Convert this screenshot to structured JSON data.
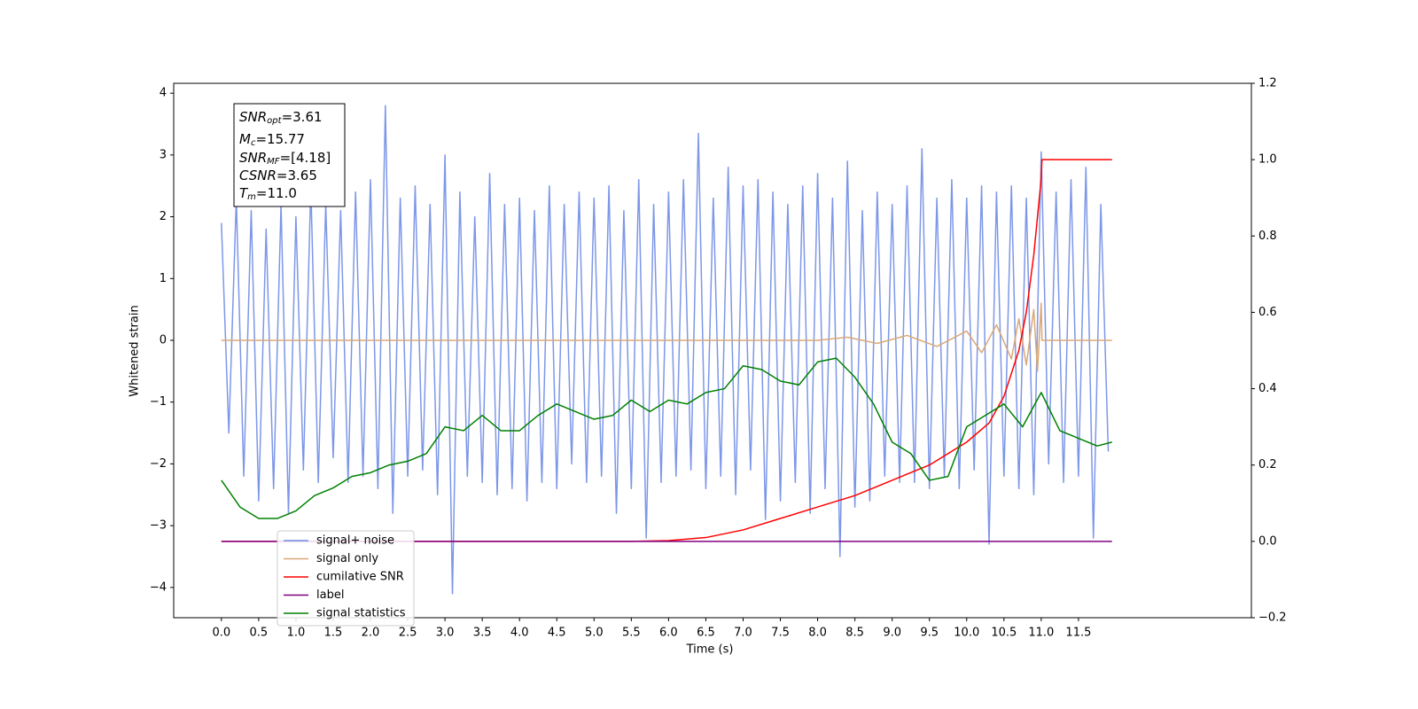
{
  "chart_data": {
    "type": "line",
    "xlabel": "Time (s)",
    "ylabel": "Whitened strain",
    "xlim": [
      -0.64,
      13.82
    ],
    "ylim": [
      -4.49,
      4.16
    ],
    "y2lim": [
      -0.2,
      1.2
    ],
    "xticks": [
      {
        "value": 0,
        "label": "0.0"
      },
      0.5,
      {
        "value": 1,
        "label": "1.0"
      },
      1.5,
      {
        "value": 2,
        "label": "2.0"
      },
      2.5,
      {
        "value": 3,
        "label": "3.0"
      },
      3.5,
      {
        "value": 4,
        "label": "4.0"
      },
      4.5,
      {
        "value": 5,
        "label": "5.0"
      },
      5.5,
      {
        "value": 6,
        "label": "6.0"
      },
      6.5,
      {
        "value": 7,
        "label": "7.0"
      },
      7.5,
      {
        "value": 8,
        "label": "8.0"
      },
      8.5,
      {
        "value": 9,
        "label": "9.0"
      },
      9.5,
      {
        "value": 10,
        "label": "10.0"
      },
      10.5,
      {
        "value": 11,
        "label": "11.0"
      },
      11.5
    ],
    "yticks": [
      {
        "value": -4,
        "label": "−4"
      },
      {
        "value": -3,
        "label": "−3"
      },
      {
        "value": -2,
        "label": "−2"
      },
      {
        "value": -1,
        "label": "−1"
      },
      0,
      1,
      2,
      3,
      4
    ],
    "y2ticks": [
      {
        "value": -0.2,
        "label": "−0.2"
      },
      {
        "value": 0,
        "label": "0.0"
      },
      0.2,
      0.4,
      0.6,
      0.8,
      {
        "value": 1,
        "label": "1.0"
      },
      1.2
    ],
    "annotation": [
      {
        "main": "SNR",
        "sub": "opt",
        "rest": "=3.61"
      },
      {
        "main": "M",
        "sub": "c",
        "rest": "=15.77"
      },
      {
        "main": "SNR",
        "sub": "MF",
        "rest": "=[4.18]"
      },
      {
        "main": "CSNR",
        "sub": "",
        "rest": "=3.65"
      },
      {
        "main": "T",
        "sub": "m",
        "rest": "=11.0"
      }
    ],
    "series": [
      {
        "name": "signal+ noise",
        "color": "#6f8ce6",
        "axis": "y",
        "x": [
          0,
          0.1,
          0.2,
          0.3,
          0.4,
          0.5,
          0.6,
          0.7,
          0.8,
          0.9,
          1,
          1.1,
          1.2,
          1.3,
          1.4,
          1.5,
          1.6,
          1.7,
          1.8,
          1.9,
          2,
          2.1,
          2.2,
          2.3,
          2.4,
          2.5,
          2.6,
          2.7,
          2.8,
          2.9,
          3,
          3.1,
          3.2,
          3.3,
          3.4,
          3.5,
          3.6,
          3.7,
          3.8,
          3.9,
          4,
          4.1,
          4.2,
          4.3,
          4.4,
          4.5,
          4.6,
          4.7,
          4.8,
          4.9,
          5,
          5.1,
          5.2,
          5.3,
          5.4,
          5.5,
          5.6,
          5.7,
          5.8,
          5.9,
          6,
          6.1,
          6.2,
          6.3,
          6.4,
          6.5,
          6.6,
          6.7,
          6.8,
          6.9,
          7,
          7.1,
          7.2,
          7.3,
          7.4,
          7.5,
          7.6,
          7.7,
          7.8,
          7.9,
          8,
          8.1,
          8.2,
          8.3,
          8.4,
          8.5,
          8.6,
          8.7,
          8.8,
          8.9,
          9,
          9.1,
          9.2,
          9.3,
          9.4,
          9.5,
          9.6,
          9.7,
          9.8,
          9.9,
          10,
          10.1,
          10.2,
          10.3,
          10.4,
          10.5,
          10.6,
          10.7,
          10.8,
          10.9,
          11,
          11.1,
          11.2,
          11.3,
          11.4,
          11.5,
          11.6,
          11.7,
          11.8,
          11.9
        ],
        "values": [
          1.9,
          -1.5,
          2.3,
          -2.2,
          2.1,
          -2.6,
          1.8,
          -2.4,
          2.2,
          -2.8,
          2.0,
          -2.1,
          2.5,
          -2.3,
          2.2,
          -1.9,
          2.1,
          -2.3,
          2.4,
          -2.2,
          2.6,
          -2.4,
          3.8,
          -2.8,
          2.3,
          -2.2,
          2.5,
          -2.1,
          2.2,
          -2.5,
          3.0,
          -4.1,
          2.4,
          -2.2,
          2.0,
          -2.3,
          2.7,
          -2.5,
          2.2,
          -2.4,
          2.3,
          -2.6,
          2.1,
          -2.3,
          2.5,
          -2.4,
          2.2,
          -2.0,
          2.4,
          -2.3,
          2.3,
          -2.2,
          2.5,
          -2.8,
          2.1,
          -2.4,
          2.6,
          -3.2,
          2.2,
          -2.3,
          2.4,
          -2.2,
          2.6,
          -2.1,
          3.35,
          -2.4,
          2.3,
          -2.2,
          2.8,
          -2.5,
          2.5,
          -2.1,
          2.6,
          -2.9,
          2.4,
          -2.6,
          2.2,
          -2.3,
          2.5,
          -2.8,
          2.7,
          -2.4,
          2.3,
          -3.5,
          2.9,
          -2.7,
          2.1,
          -2.6,
          2.4,
          -2.2,
          2.2,
          -2.3,
          2.5,
          -2.3,
          3.1,
          -2.4,
          2.3,
          -2.2,
          2.6,
          -2.4,
          2.3,
          -2.1,
          2.5,
          -3.3,
          2.4,
          -2.2,
          2.5,
          -2.4,
          2.3,
          -2.5,
          3.05,
          -2.0,
          2.4,
          -2.3,
          2.6,
          -2.2,
          2.8,
          -3.2,
          2.2,
          -1.8
        ]
      },
      {
        "name": "signal only",
        "color": "#d9a878",
        "axis": "y",
        "x": [
          0,
          8,
          8.4,
          8.8,
          9.2,
          9.6,
          10,
          10.2,
          10.4,
          10.6,
          10.7,
          10.8,
          10.9,
          10.95,
          11,
          11.01,
          11.95
        ],
        "values": [
          0,
          0,
          0.05,
          -0.05,
          0.08,
          -0.1,
          0.15,
          -0.2,
          0.25,
          -0.3,
          0.35,
          -0.4,
          0.5,
          -0.5,
          0.6,
          0,
          0
        ]
      },
      {
        "name": "cumilative SNR",
        "color": "#ff0000",
        "axis": "y2",
        "x": [
          0,
          5.5,
          6,
          6.5,
          7,
          7.5,
          8,
          8.5,
          9,
          9.5,
          10,
          10.3,
          10.5,
          10.7,
          10.8,
          10.9,
          11,
          11.01,
          11.95
        ],
        "values": [
          0,
          0,
          0.002,
          0.01,
          0.03,
          0.06,
          0.09,
          0.12,
          0.16,
          0.2,
          0.26,
          0.31,
          0.38,
          0.5,
          0.6,
          0.75,
          0.95,
          1.0,
          1.0
        ]
      },
      {
        "name": "label",
        "color": "#800080",
        "axis": "y2",
        "x": [
          0,
          11.95
        ],
        "values": [
          0,
          0
        ]
      },
      {
        "name": "signal statistics",
        "color": "#008000",
        "axis": "y2",
        "x": [
          0,
          0.25,
          0.5,
          0.75,
          1,
          1.25,
          1.5,
          1.75,
          2,
          2.25,
          2.5,
          2.75,
          3,
          3.25,
          3.5,
          3.75,
          4,
          4.25,
          4.5,
          4.75,
          5,
          5.25,
          5.5,
          5.75,
          6,
          6.25,
          6.5,
          6.75,
          7,
          7.25,
          7.5,
          7.75,
          8,
          8.25,
          8.5,
          8.75,
          9,
          9.25,
          9.5,
          9.75,
          10,
          10.25,
          10.5,
          10.75,
          11,
          11.25,
          11.5,
          11.75,
          11.95
        ],
        "values": [
          0.16,
          0.09,
          0.06,
          0.06,
          0.08,
          0.12,
          0.14,
          0.17,
          0.18,
          0.2,
          0.21,
          0.23,
          0.3,
          0.29,
          0.33,
          0.29,
          0.29,
          0.33,
          0.36,
          0.34,
          0.32,
          0.33,
          0.37,
          0.34,
          0.37,
          0.36,
          0.39,
          0.4,
          0.46,
          0.45,
          0.42,
          0.41,
          0.47,
          0.48,
          0.43,
          0.36,
          0.26,
          0.23,
          0.16,
          0.17,
          0.3,
          0.33,
          0.36,
          0.3,
          0.39,
          0.29,
          0.27,
          0.25,
          0.26
        ]
      }
    ]
  }
}
